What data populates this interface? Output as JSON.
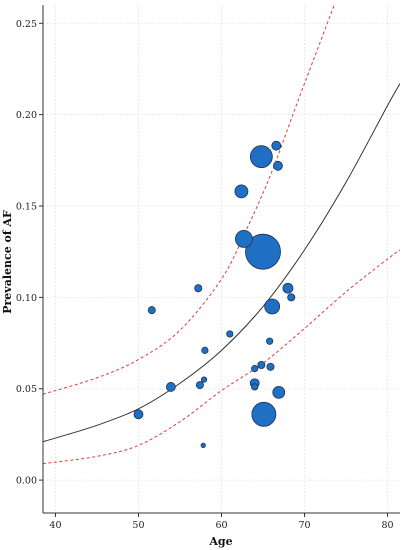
{
  "chart_data": {
    "type": "scatter",
    "title": "",
    "xlabel": "Age",
    "ylabel": "Prevalence of AF",
    "xlim": [
      38.5,
      81.5
    ],
    "ylim": [
      -0.018,
      0.26
    ],
    "x_ticks": [
      40,
      50,
      60,
      70,
      80
    ],
    "x_tick_labels": [
      "40",
      "50",
      "60",
      "70",
      "80"
    ],
    "y_ticks": [
      0.0,
      0.05,
      0.1,
      0.15,
      0.2,
      0.25
    ],
    "y_tick_labels": [
      "0.00",
      "0.05",
      "0.10",
      "0.15",
      "0.20",
      "0.25"
    ],
    "grid": true,
    "bubble_color": "#1f6fc5",
    "bubble_edge_color": "#1a3550",
    "fit_color": "#333333",
    "ci_color": "#e03b3b",
    "points": [
      {
        "x": 50.0,
        "y": 0.036,
        "r": 4.5
      },
      {
        "x": 51.6,
        "y": 0.093,
        "r": 3.6
      },
      {
        "x": 53.9,
        "y": 0.051,
        "r": 4.5
      },
      {
        "x": 57.2,
        "y": 0.105,
        "r": 3.6
      },
      {
        "x": 57.4,
        "y": 0.052,
        "r": 3.6
      },
      {
        "x": 57.8,
        "y": 0.019,
        "r": 2.2
      },
      {
        "x": 57.9,
        "y": 0.055,
        "r": 2.7
      },
      {
        "x": 58.0,
        "y": 0.071,
        "r": 3.2
      },
      {
        "x": 61.0,
        "y": 0.08,
        "r": 3.2
      },
      {
        "x": 62.4,
        "y": 0.158,
        "r": 6.5
      },
      {
        "x": 62.7,
        "y": 0.132,
        "r": 8.5
      },
      {
        "x": 64.0,
        "y": 0.061,
        "r": 3.2
      },
      {
        "x": 64.0,
        "y": 0.051,
        "r": 3.2
      },
      {
        "x": 64.0,
        "y": 0.053,
        "r": 4.5
      },
      {
        "x": 64.8,
        "y": 0.177,
        "r": 11.0
      },
      {
        "x": 64.8,
        "y": 0.063,
        "r": 3.6
      },
      {
        "x": 65.0,
        "y": 0.125,
        "r": 17.5
      },
      {
        "x": 65.1,
        "y": 0.036,
        "r": 12.0
      },
      {
        "x": 65.8,
        "y": 0.076,
        "r": 3.2
      },
      {
        "x": 65.9,
        "y": 0.062,
        "r": 3.6
      },
      {
        "x": 66.1,
        "y": 0.095,
        "r": 7.5
      },
      {
        "x": 66.6,
        "y": 0.183,
        "r": 4.5
      },
      {
        "x": 66.8,
        "y": 0.172,
        "r": 4.5
      },
      {
        "x": 66.9,
        "y": 0.048,
        "r": 6.0
      },
      {
        "x": 68.0,
        "y": 0.105,
        "r": 5.0
      },
      {
        "x": 68.4,
        "y": 0.1,
        "r": 3.6
      }
    ],
    "fit_curve": [
      {
        "x": 38.5,
        "y": 0.021
      },
      {
        "x": 40,
        "y": 0.023
      },
      {
        "x": 45,
        "y": 0.03
      },
      {
        "x": 50,
        "y": 0.039
      },
      {
        "x": 55,
        "y": 0.053
      },
      {
        "x": 60,
        "y": 0.071
      },
      {
        "x": 65,
        "y": 0.095
      },
      {
        "x": 70,
        "y": 0.126
      },
      {
        "x": 75,
        "y": 0.163
      },
      {
        "x": 80,
        "y": 0.205
      },
      {
        "x": 81.5,
        "y": 0.217
      }
    ],
    "ci_upper": [
      {
        "x": 38.5,
        "y": 0.047
      },
      {
        "x": 45,
        "y": 0.056
      },
      {
        "x": 50,
        "y": 0.066
      },
      {
        "x": 55,
        "y": 0.082
      },
      {
        "x": 60,
        "y": 0.11
      },
      {
        "x": 63,
        "y": 0.137
      },
      {
        "x": 66,
        "y": 0.168
      },
      {
        "x": 69,
        "y": 0.205
      },
      {
        "x": 72,
        "y": 0.241
      },
      {
        "x": 74,
        "y": 0.265
      }
    ],
    "ci_lower": [
      {
        "x": 38.5,
        "y": 0.009
      },
      {
        "x": 45,
        "y": 0.013
      },
      {
        "x": 50,
        "y": 0.019
      },
      {
        "x": 55,
        "y": 0.032
      },
      {
        "x": 60,
        "y": 0.049
      },
      {
        "x": 65,
        "y": 0.064
      },
      {
        "x": 70,
        "y": 0.083
      },
      {
        "x": 75,
        "y": 0.103
      },
      {
        "x": 80,
        "y": 0.121
      },
      {
        "x": 81.5,
        "y": 0.126
      }
    ]
  }
}
